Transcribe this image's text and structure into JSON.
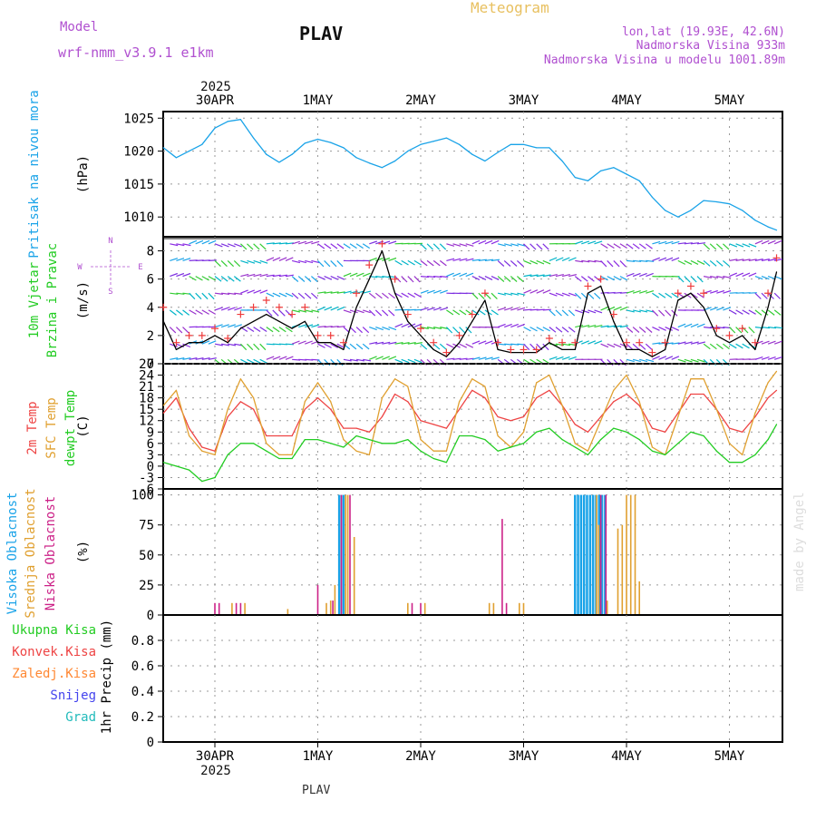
{
  "header": {
    "model_label": "Model",
    "model_name": "wrf-nmm_v3.9.1 e1km",
    "station": "PLAV",
    "product": "Meteogram",
    "lonlat": "lon,lat (19.93E, 42.6N)",
    "elevation": "Nadmorska Visina 933m",
    "elevation_model": "Nadmorska Visina u modelu 1001.89m",
    "credit": "made by Angel",
    "footer_station": "PLAV"
  },
  "colors": {
    "pressure": "#1aa3e8",
    "wind_speed": "#000000",
    "wind_gust": "#ee3b3b",
    "t2m": "#ee4444",
    "sfc": "#e0a030",
    "dewpt": "#22cc22",
    "cloud_high": "#1aa3e8",
    "cloud_mid": "#e0a030",
    "cloud_low": "#cc2288",
    "precip_total": "#22cc22",
    "precip_conv": "#ee4444",
    "precip_frozen": "#ff8833",
    "precip_snow": "#4444ee",
    "precip_graupel": "#22bbbb",
    "label_purple": "#b050d0",
    "label_gold": "#e8c060"
  },
  "time_axis": {
    "top_year": "2025",
    "bottom_year": "2025",
    "days": [
      "30APR",
      "1MAY",
      "2MAY",
      "3MAY",
      "4MAY",
      "5MAY"
    ],
    "start_hour": 0,
    "end_hour": 143
  },
  "chart_data": [
    {
      "type": "line",
      "id": "pressure",
      "ylabel_lines": [
        "Pritisak na nivou mora"
      ],
      "unit": "(hPa)",
      "ylim": [
        1007,
        1026
      ],
      "yticks": [
        1010,
        1015,
        1020,
        1025
      ],
      "x_hours": [
        0,
        3,
        6,
        9,
        12,
        15,
        18,
        21,
        24,
        27,
        30,
        33,
        36,
        39,
        42,
        45,
        48,
        51,
        54,
        57,
        60,
        63,
        66,
        69,
        72,
        75,
        78,
        81,
        84,
        87,
        90,
        93,
        96,
        99,
        102,
        105,
        108,
        111,
        114,
        117,
        120,
        123,
        126,
        129,
        132,
        135,
        138,
        141,
        143
      ],
      "series": [
        {
          "values": [
            1020.5,
            1019.0,
            1020.0,
            1021.0,
            1023.5,
            1024.5,
            1024.8,
            1022.0,
            1019.5,
            1018.3,
            1019.5,
            1021.2,
            1021.8,
            1021.3,
            1020.5,
            1019.0,
            1018.2,
            1017.5,
            1018.5,
            1020.0,
            1021.0,
            1021.5,
            1022.0,
            1021.0,
            1019.5,
            1018.5,
            1019.8,
            1021.0,
            1021.0,
            1020.5,
            1020.5,
            1018.5,
            1016.0,
            1015.5,
            1017.0,
            1017.5,
            1016.5,
            1015.5,
            1013.0,
            1011.0,
            1010.0,
            1011.0,
            1012.5,
            1012.3,
            1012.0,
            1011.0,
            1009.5,
            1008.5,
            1008.0
          ]
        }
      ]
    },
    {
      "type": "line",
      "id": "wind",
      "ylabel_lines": [
        "10m Vjetar",
        "Brzina i Pravac"
      ],
      "unit": "(m/s)",
      "direction_key": [
        "N",
        "W",
        "E",
        "S"
      ],
      "ylim": [
        0,
        9
      ],
      "yticks": [
        0,
        2,
        4,
        6,
        8
      ],
      "x_hours": [
        0,
        3,
        6,
        9,
        12,
        15,
        18,
        21,
        24,
        27,
        30,
        33,
        36,
        39,
        42,
        45,
        48,
        51,
        54,
        57,
        60,
        63,
        66,
        69,
        72,
        75,
        78,
        81,
        84,
        87,
        90,
        93,
        96,
        99,
        102,
        105,
        108,
        111,
        114,
        117,
        120,
        123,
        126,
        129,
        132,
        135,
        138,
        141,
        143
      ],
      "series": [
        {
          "kind": "speed",
          "values": [
            3.0,
            1.0,
            1.5,
            1.5,
            2.0,
            1.5,
            2.5,
            3.0,
            3.5,
            3.0,
            2.5,
            3.0,
            1.5,
            1.5,
            1.0,
            4.0,
            6.0,
            8.0,
            5.0,
            3.0,
            2.0,
            1.0,
            0.5,
            1.5,
            3.0,
            4.5,
            1.0,
            0.8,
            0.8,
            0.8,
            1.5,
            1.0,
            1.0,
            5.0,
            5.5,
            3.0,
            1.0,
            1.0,
            0.5,
            1.0,
            4.5,
            5.0,
            4.0,
            2.0,
            1.5,
            2.0,
            1.0,
            4.0,
            6.5
          ]
        },
        {
          "kind": "gust",
          "values": [
            4.0,
            1.5,
            2.0,
            2.0,
            2.5,
            1.8,
            3.5,
            4.0,
            4.5,
            4.0,
            3.5,
            4.0,
            2.0,
            2.0,
            1.5,
            5.0,
            7.0,
            8.5,
            6.0,
            3.5,
            2.5,
            1.5,
            0.8,
            2.0,
            3.5,
            5.0,
            1.5,
            1.0,
            1.0,
            1.0,
            1.8,
            1.5,
            1.5,
            5.5,
            6.0,
            3.5,
            1.5,
            1.5,
            0.8,
            1.5,
            5.0,
            5.5,
            5.0,
            2.5,
            2.0,
            2.5,
            1.5,
            5.0,
            7.5
          ]
        }
      ]
    },
    {
      "type": "line",
      "id": "temperature",
      "ylabel_lines": [
        "2m Temp",
        "SFC Temp",
        "dewpt Temp"
      ],
      "unit": "(C)",
      "ylim": [
        -6,
        27
      ],
      "yticks": [
        -6,
        -3,
        0,
        3,
        6,
        9,
        12,
        15,
        18,
        21,
        24,
        27
      ],
      "x_hours": [
        0,
        3,
        6,
        9,
        12,
        15,
        18,
        21,
        24,
        27,
        30,
        33,
        36,
        39,
        42,
        45,
        48,
        51,
        54,
        57,
        60,
        63,
        66,
        69,
        72,
        75,
        78,
        81,
        84,
        87,
        90,
        93,
        96,
        99,
        102,
        105,
        108,
        111,
        114,
        117,
        120,
        123,
        126,
        129,
        132,
        135,
        138,
        141,
        143
      ],
      "series": [
        {
          "kind": "t2m",
          "values": [
            14,
            18,
            10,
            5,
            4,
            13,
            17,
            15,
            8,
            8,
            8,
            15,
            18,
            15,
            10,
            10,
            9,
            13,
            19,
            17,
            12,
            11,
            10,
            15,
            20,
            18,
            13,
            12,
            13,
            18,
            20,
            16,
            11,
            9,
            13,
            17,
            19,
            16,
            10,
            9,
            14,
            19,
            19,
            15,
            10,
            9,
            13,
            18,
            20
          ]
        },
        {
          "kind": "sfc",
          "values": [
            16,
            20,
            8,
            4,
            3,
            15,
            23,
            18,
            6,
            3,
            3,
            17,
            22,
            17,
            7,
            4,
            3,
            18,
            23,
            21,
            7,
            4,
            4,
            17,
            23,
            21,
            8,
            5,
            9,
            22,
            24,
            16,
            6,
            4,
            12,
            20,
            24,
            17,
            5,
            3,
            13,
            23,
            23,
            15,
            6,
            3,
            14,
            22,
            25
          ]
        },
        {
          "kind": "dewpt",
          "values": [
            1,
            0,
            -1,
            -4,
            -3,
            3,
            6,
            6,
            4,
            2,
            2,
            7,
            7,
            6,
            5,
            8,
            7,
            6,
            6,
            7,
            4,
            2,
            1,
            8,
            8,
            7,
            4,
            5,
            6,
            9,
            10,
            7,
            5,
            3,
            7,
            10,
            9,
            7,
            4,
            3,
            6,
            9,
            8,
            4,
            1,
            1,
            3,
            7,
            11
          ]
        }
      ]
    },
    {
      "type": "bar",
      "id": "clouds",
      "ylabel_lines": [
        "Visoka Oblacnost",
        "Srednja Oblacnost",
        "Niska Oblacnost"
      ],
      "unit": "(%)",
      "ylim": [
        0,
        105
      ],
      "yticks": [
        0,
        25,
        50,
        75,
        100
      ],
      "series": [
        {
          "kind": "high",
          "bars": [
            [
              41,
              100
            ],
            [
              42,
              100
            ],
            [
              96,
              100
            ],
            [
              96.7,
              100
            ],
            [
              97.4,
              100
            ],
            [
              98.1,
              100
            ],
            [
              98.8,
              100
            ],
            [
              99.5,
              100
            ],
            [
              100.2,
              100
            ],
            [
              100.9,
              100
            ],
            [
              101.6,
              100
            ],
            [
              102.3,
              100
            ],
            [
              103,
              100
            ]
          ]
        },
        {
          "kind": "mid",
          "bars": [
            [
              16,
              10
            ],
            [
              19,
              10
            ],
            [
              29,
              5
            ],
            [
              38,
              10
            ],
            [
              39,
              12
            ],
            [
              40,
              25
            ],
            [
              42.5,
              100
            ],
            [
              43,
              100
            ],
            [
              44.5,
              65
            ],
            [
              57,
              10
            ],
            [
              61,
              10
            ],
            [
              76,
              10
            ],
            [
              77,
              10
            ],
            [
              83,
              10
            ],
            [
              84,
              10
            ],
            [
              101,
              100
            ],
            [
              101.5,
              75
            ],
            [
              103.5,
              12
            ],
            [
              106,
              72
            ],
            [
              107,
              75
            ],
            [
              108,
              100
            ],
            [
              109,
              100
            ],
            [
              110,
              100
            ],
            [
              111,
              28
            ]
          ]
        },
        {
          "kind": "low",
          "bars": [
            [
              12,
              10
            ],
            [
              13,
              10
            ],
            [
              17,
              10
            ],
            [
              18,
              10
            ],
            [
              36,
              25
            ],
            [
              39.5,
              12
            ],
            [
              41.5,
              100
            ],
            [
              43.5,
              100
            ],
            [
              58,
              10
            ],
            [
              60,
              10
            ],
            [
              79,
              80
            ],
            [
              80,
              10
            ],
            [
              102,
              100
            ],
            [
              103.2,
              100
            ]
          ]
        }
      ]
    },
    {
      "type": "bar",
      "id": "precip",
      "ylabel_lines": [
        "1hr Precip (mm)"
      ],
      "legend": [
        "Ukupna Kisa",
        "Konvek.Kisa",
        "Zaledj.Kisa",
        "Snijeg",
        "Grad"
      ],
      "ylim": [
        0,
        1
      ],
      "yticks": [
        0,
        0.2,
        0.4,
        0.6,
        0.8
      ],
      "series": []
    }
  ]
}
